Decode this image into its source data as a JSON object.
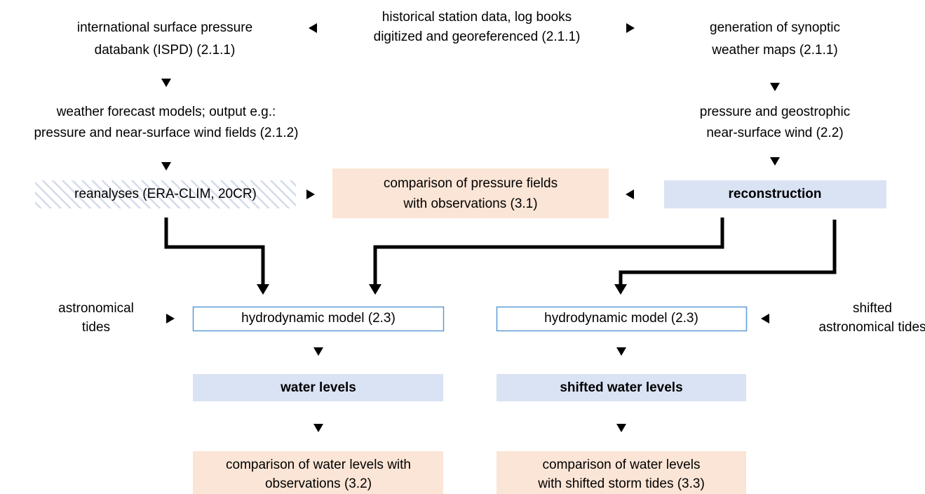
{
  "nodes": [
    {
      "lines": [
        "historical station data, log books",
        "digitized and georeferenced (2.1.1)"
      ]
    },
    {
      "lines": [
        "international surface pressure",
        "databank (ISPD) (2.1.1)"
      ]
    },
    {
      "lines": [
        "generation of synoptic",
        "weather maps (2.1.1)"
      ]
    },
    {
      "lines": [
        "weather forecast models; output e.g.:",
        "pressure and near-surface wind fields (2.1.2)"
      ]
    },
    {
      "lines": [
        "pressure and geostrophic",
        "near-surface wind (2.2)"
      ]
    },
    {
      "lines": [
        "reanalyses (ERA-CLIM, 20CR)"
      ]
    },
    {
      "lines": [
        "comparison of pressure fields",
        "with observations (3.1)"
      ]
    },
    {
      "lines": [
        "reconstruction"
      ]
    },
    {
      "lines": [
        "astronomical",
        "tides"
      ]
    },
    {
      "lines": [
        "hydrodynamic model (2.3)"
      ]
    },
    {
      "lines": [
        "hydrodynamic model (2.3)"
      ]
    },
    {
      "lines": [
        "shifted",
        "astronomical tides"
      ]
    },
    {
      "lines": [
        "water levels"
      ]
    },
    {
      "lines": [
        "shifted water levels"
      ]
    },
    {
      "lines": [
        "comparison of water levels with",
        "observations (3.2)"
      ]
    },
    {
      "lines": [
        "comparison of water levels",
        "with shifted storm tides (3.3)"
      ]
    }
  ]
}
